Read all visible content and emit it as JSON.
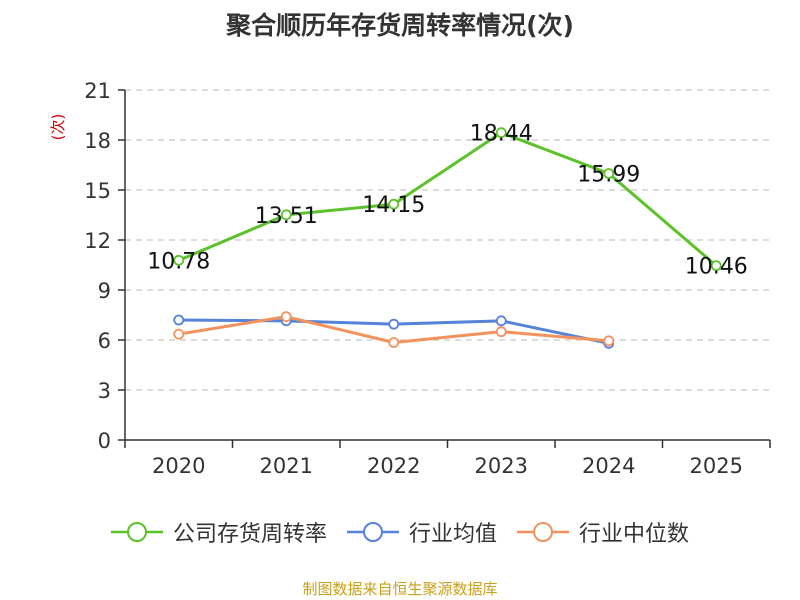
{
  "chart_data": {
    "type": "line",
    "title": "聚合顺历年存货周转率情况(次)",
    "unit_label": "(次)",
    "categories": [
      "2020",
      "2021",
      "2022",
      "2023",
      "2024",
      "2025"
    ],
    "ylim": [
      0,
      21
    ],
    "yticks": [
      0,
      3,
      6,
      9,
      12,
      15,
      18,
      21
    ],
    "grid": true,
    "legend_position": "bottom",
    "series": [
      {
        "name": "公司存货周转率",
        "color": "#5cc22c",
        "values": [
          10.78,
          13.51,
          14.15,
          18.44,
          15.99,
          10.46
        ],
        "labels": [
          "10.78",
          "13.51",
          "14.15",
          "18.44",
          "15.99",
          "10.46"
        ]
      },
      {
        "name": "行业均值",
        "color": "#5583d9",
        "values": [
          7.2,
          7.15,
          6.95,
          7.15,
          5.8,
          null
        ]
      },
      {
        "name": "行业中位数",
        "color": "#f4925e",
        "values": [
          6.35,
          7.4,
          5.85,
          6.5,
          5.95,
          null
        ]
      }
    ],
    "source": "制图数据来自恒生聚源数据库"
  }
}
